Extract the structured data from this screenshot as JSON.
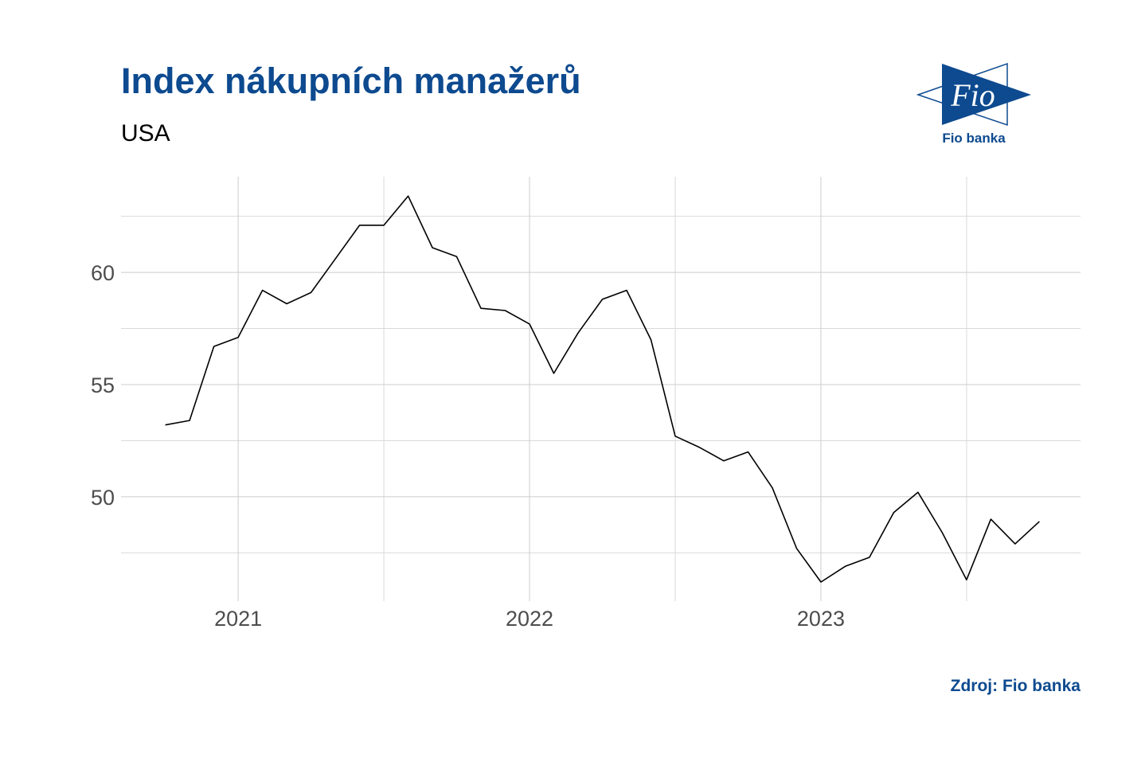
{
  "title": "Index nákupních manažerů",
  "subtitle": "USA",
  "logo": {
    "text": "Fio",
    "caption": "Fio banka"
  },
  "source": "Zdroj: Fio banka",
  "chart_data": {
    "type": "line",
    "x": [
      "2020-10",
      "2020-11",
      "2020-12",
      "2021-01",
      "2021-02",
      "2021-03",
      "2021-04",
      "2021-05",
      "2021-06",
      "2021-07",
      "2021-08",
      "2021-09",
      "2021-10",
      "2021-11",
      "2021-12",
      "2022-01",
      "2022-02",
      "2022-03",
      "2022-04",
      "2022-05",
      "2022-06",
      "2022-07",
      "2022-08",
      "2022-09",
      "2022-10",
      "2022-11",
      "2022-12",
      "2023-01",
      "2023-02",
      "2023-03",
      "2023-04",
      "2023-05",
      "2023-06",
      "2023-07",
      "2023-08",
      "2023-09",
      "2023-10"
    ],
    "series": [
      {
        "name": "USA",
        "color": "#000000",
        "values": [
          53.2,
          53.4,
          56.7,
          57.1,
          59.2,
          58.6,
          59.1,
          60.6,
          62.1,
          62.1,
          63.4,
          61.1,
          60.7,
          58.4,
          58.3,
          57.7,
          55.5,
          57.3,
          58.8,
          59.2,
          57.0,
          52.7,
          52.2,
          51.6,
          52.0,
          50.4,
          47.7,
          46.2,
          46.9,
          47.3,
          49.3,
          50.2,
          48.4,
          46.3,
          49.0,
          47.9,
          48.9
        ]
      }
    ],
    "xlim": [
      2020.598,
      2023.891
    ],
    "xticks": [
      2021,
      2022,
      2023
    ],
    "x_minor_ticks": [
      2021.5,
      2022.5,
      2023.5
    ],
    "ylim": [
      45.35,
      64.26
    ],
    "yticks": [
      50,
      55,
      60
    ],
    "y_minor_ticks": [
      47.5,
      52.5,
      57.5,
      62.5
    ],
    "grid": true
  }
}
